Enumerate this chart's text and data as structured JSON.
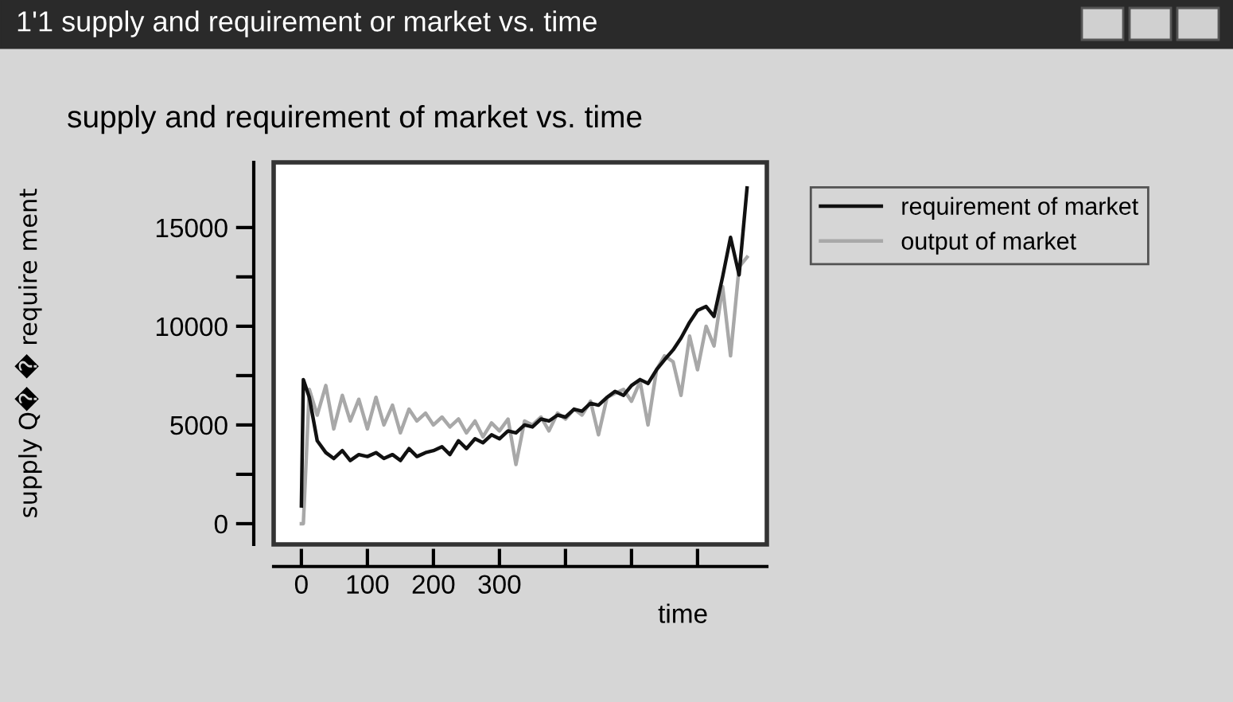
{
  "chart_data": {
    "type": "line",
    "title": "supply and requirement of market vs. time",
    "annotations": [
      "1'1 supply and requirement or market vs. time"
    ],
    "xlabel": "time",
    "ylabel": "supply Q� � require ment",
    "x": [
      0,
      3,
      12,
      24,
      37,
      49,
      62,
      74,
      87,
      100,
      113,
      125,
      138,
      150,
      163,
      175,
      188,
      200,
      213,
      225,
      238,
      250,
      263,
      275,
      288,
      300,
      313,
      325,
      338,
      350,
      363,
      375,
      388,
      400,
      413,
      425,
      438,
      450,
      463,
      475,
      488,
      500,
      513,
      525,
      538,
      550,
      563,
      575,
      588,
      600,
      613,
      625,
      638,
      650,
      663,
      675
    ],
    "series": [
      {
        "name": "requirement of market",
        "color": "#111111",
        "values": [
          900,
          7300,
          6400,
          4200,
          3600,
          3300,
          3700,
          3200,
          3500,
          3400,
          3600,
          3300,
          3500,
          3200,
          3800,
          3400,
          3600,
          3700,
          3900,
          3500,
          4200,
          3800,
          4300,
          4100,
          4500,
          4300,
          4700,
          4600,
          5000,
          4900,
          5300,
          5200,
          5500,
          5400,
          5800,
          5700,
          6100,
          6000,
          6400,
          6700,
          6500,
          7000,
          7300,
          7100,
          7800,
          8300,
          8800,
          9400,
          10200,
          10800,
          11000,
          10500,
          12500,
          14500,
          12600,
          17000
        ]
      },
      {
        "name": "output of market",
        "color": "#a8a8a8",
        "values": [
          0,
          0,
          6800,
          5500,
          7000,
          4800,
          6500,
          5200,
          6300,
          4800,
          6400,
          5000,
          6000,
          4600,
          5800,
          5200,
          5600,
          5000,
          5400,
          4900,
          5300,
          4600,
          5200,
          4400,
          5100,
          4700,
          5300,
          3000,
          5200,
          5000,
          5400,
          4700,
          5600,
          5300,
          5800,
          5500,
          6200,
          4500,
          6400,
          6600,
          6800,
          6200,
          7200,
          5000,
          7800,
          8500,
          8200,
          6500,
          9500,
          7800,
          10000,
          9000,
          12000,
          8500,
          13000,
          13500
        ]
      }
    ],
    "xlim": [
      -42,
      705
    ],
    "xticks": [
      0,
      100,
      200,
      300,
      {
        "value": 400,
        "label": null
      },
      {
        "value": 500,
        "label": null
      },
      {
        "value": 600,
        "label": null
      }
    ],
    "ylim": [
      -1050,
      18300
    ],
    "yticks": [
      0,
      5000,
      10000,
      15000
    ],
    "grid": false,
    "legend": "right",
    "line_style": "solid"
  }
}
